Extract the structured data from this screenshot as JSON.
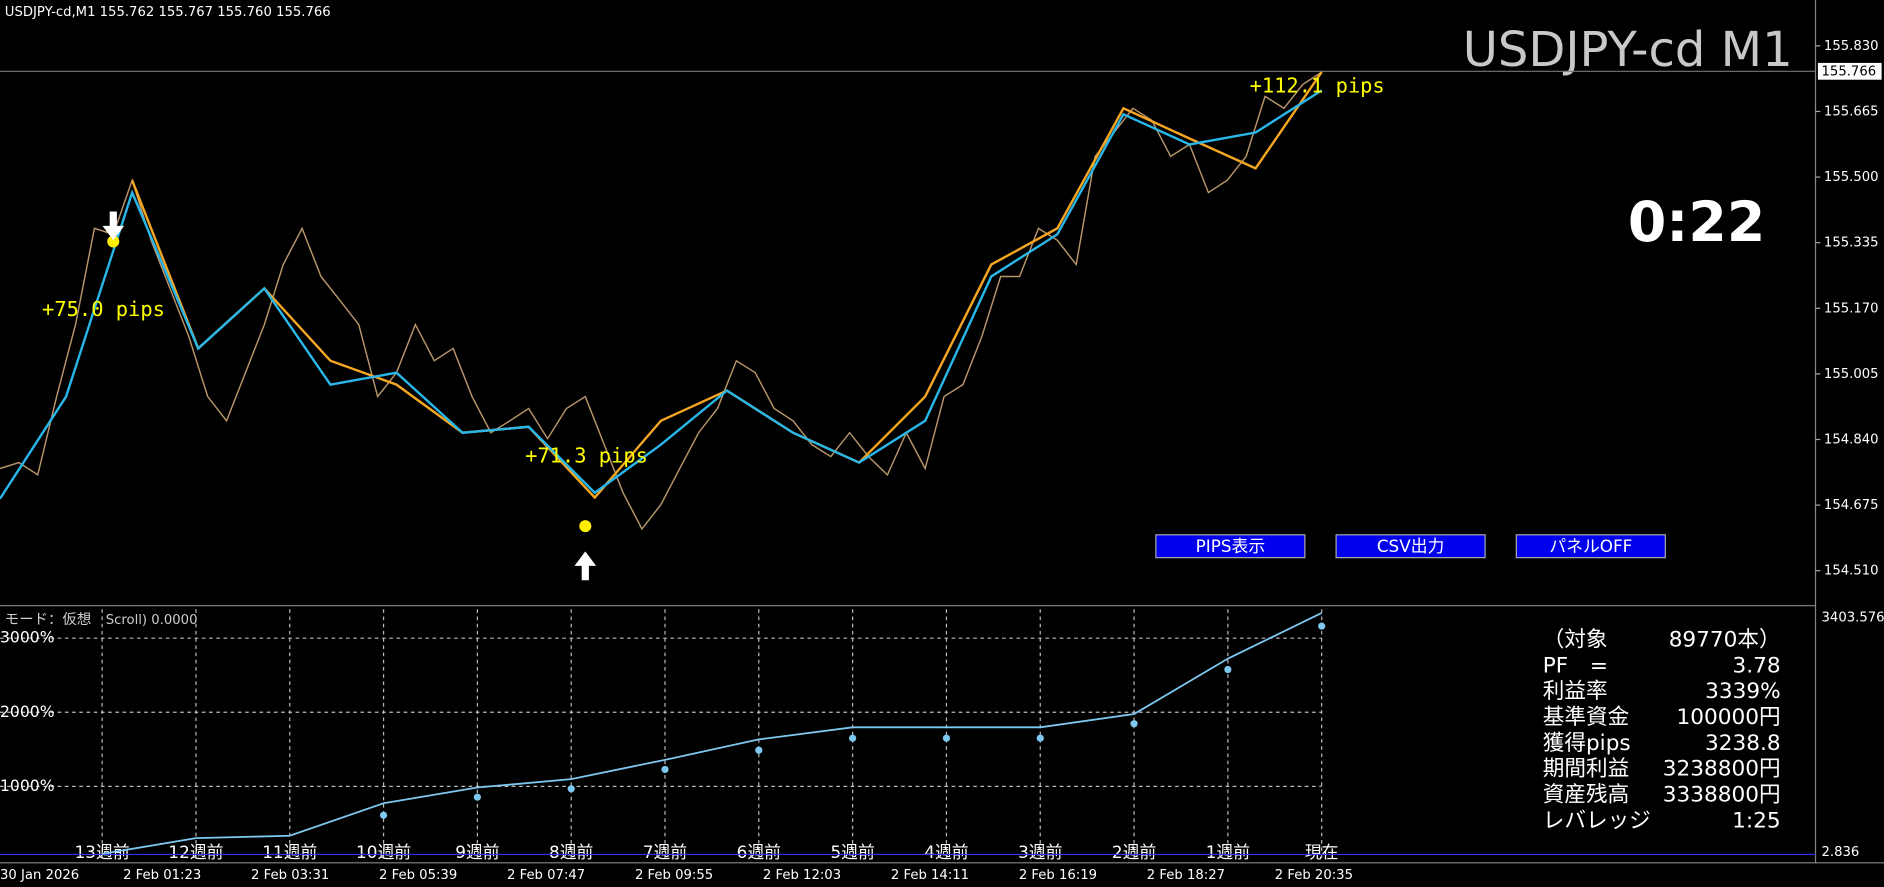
{
  "header": {
    "symbol_info": "USDJPY-cd,M1  155.762 155.767 155.760 155.766",
    "watermark": "USDJPY-cd M1",
    "timer": "0:22"
  },
  "price_chart": {
    "ylim": [
      154.425,
      155.945
    ],
    "yticks": [
      {
        "value": 155.83,
        "label": "155.830"
      },
      {
        "value": 155.665,
        "label": "155.665"
      },
      {
        "value": 155.5,
        "label": "155.500"
      },
      {
        "value": 155.335,
        "label": "155.335"
      },
      {
        "value": 155.17,
        "label": "155.170"
      },
      {
        "value": 155.005,
        "label": "155.005"
      },
      {
        "value": 154.84,
        "label": "154.840"
      },
      {
        "value": 154.675,
        "label": "154.675"
      },
      {
        "value": 154.51,
        "label": "154.510"
      }
    ],
    "current_price": {
      "value": 155.766,
      "label": "155.766"
    },
    "price": {
      "color": "#b8966a",
      "values": [
        154.767,
        154.782,
        154.751,
        154.948,
        155.129,
        155.371,
        155.356,
        155.492,
        155.341,
        155.22,
        155.099,
        154.948,
        154.887,
        155.008,
        155.129,
        155.28,
        155.371,
        155.25,
        155.19,
        155.129,
        154.948,
        155.008,
        155.129,
        155.038,
        155.069,
        154.948,
        154.857,
        154.887,
        154.918,
        154.842,
        154.918,
        154.948,
        154.827,
        154.706,
        154.615,
        154.676,
        154.767,
        154.857,
        154.918,
        155.038,
        155.008,
        154.918,
        154.887,
        154.827,
        154.797,
        154.857,
        154.797,
        154.751,
        154.857,
        154.767,
        154.948,
        154.978,
        155.099,
        155.25,
        155.25,
        155.371,
        155.341,
        155.28,
        155.552,
        155.612,
        155.673,
        155.643,
        155.552,
        155.582,
        155.461,
        155.492,
        155.552,
        155.703,
        155.673,
        155.733,
        155.764
      ]
    },
    "ma_slow": {
      "color": "#29b6e8",
      "values": [
        154.691,
        154.948,
        155.461,
        155.069,
        155.22,
        154.978,
        155.008,
        154.857,
        154.872,
        154.706,
        154.827,
        154.963,
        154.857,
        154.782,
        154.887,
        155.25,
        155.356,
        155.658,
        155.582,
        155.612,
        155.718
      ]
    },
    "ma_fast": {
      "color": "#f5a623",
      "values": [
        null,
        null,
        155.492,
        155.069,
        155.22,
        155.038,
        154.978,
        154.857,
        154.872,
        154.694,
        154.887,
        154.963,
        154.857,
        154.782,
        154.948,
        155.28,
        155.371,
        155.673,
        155.597,
        155.522,
        155.764
      ]
    },
    "signals": [
      {
        "direction": "sell",
        "index": 6,
        "price": 155.338
      },
      {
        "direction": "buy",
        "index": 31,
        "price": 154.622
      }
    ],
    "pips_labels": [
      "+75.0 pips",
      "+71.3 pips",
      "+112.1 pips"
    ]
  },
  "buttons": [
    "PIPS表示",
    "CSV出力",
    "パネルOFF"
  ],
  "equity_chart": {
    "indicator_label": "モード：仮想",
    "indicator_value": "Scroll) 0.0000",
    "ylim": [
      0,
      3390
    ],
    "yticks": [
      {
        "value": 1000,
        "label": "1000%"
      },
      {
        "value": 2000,
        "label": "2000%"
      },
      {
        "value": 3000,
        "label": "3000%"
      }
    ],
    "right_axis": [
      "3403.576",
      "2.836"
    ],
    "categories": [
      "13週前",
      "12週前",
      "11週前",
      "10週前",
      "9週前",
      "8週前",
      "7週前",
      "6週前",
      "5週前",
      "4週前",
      "3週前",
      "2週前",
      "1週前",
      "現在"
    ],
    "line": {
      "color": "#7ec8f0",
      "values": [
        89,
        301,
        333,
        772,
        984,
        1098,
        1358,
        1634,
        1797,
        1797,
        1797,
        1976,
        2724,
        3341
      ]
    },
    "dots": {
      "color": "#7ec8f0",
      "values": [
        null,
        null,
        null,
        610,
        854,
        967,
        1228,
        1488,
        1650,
        1650,
        1650,
        1846,
        2577,
        3163
      ]
    }
  },
  "time_axis": [
    "30 Jan 2026",
    "2 Feb 01:23",
    "2 Feb 03:31",
    "2 Feb 05:39",
    "2 Feb 07:47",
    "2 Feb 09:55",
    "2 Feb 12:03",
    "2 Feb 14:11",
    "2 Feb 16:19",
    "2 Feb 18:27",
    "2 Feb 20:35"
  ],
  "stats": [
    [
      "（対象",
      "89770本）"
    ],
    [
      "PF　=",
      "3.78"
    ],
    [
      "利益率",
      "3339%"
    ],
    [
      "基準資金",
      "100000円"
    ],
    [
      "獲得pips",
      "3238.8"
    ],
    [
      "期間利益",
      "3238800円"
    ],
    [
      "資産残高",
      "3338800円"
    ],
    [
      "レバレッジ",
      "1:25"
    ]
  ]
}
